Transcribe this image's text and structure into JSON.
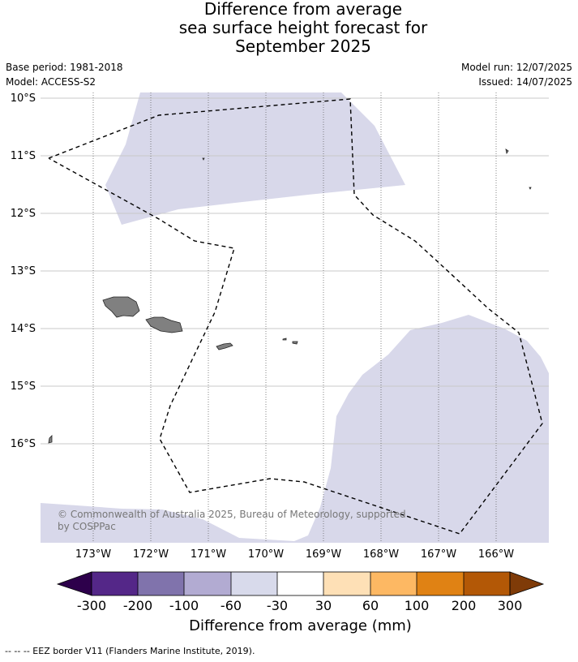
{
  "title_lines": [
    "Difference from average",
    "sea surface height forecast for",
    "September 2025"
  ],
  "meta": {
    "base_period": "Base period: 1981-2018",
    "model": "Model: ACCESS-S2",
    "model_run": "Model run: 12/07/2025",
    "issued": "Issued: 14/07/2025"
  },
  "map": {
    "lat_labels": [
      "10°S",
      "11°S",
      "12°S",
      "13°S",
      "14°S",
      "15°S",
      "16°S"
    ],
    "lon_labels": [
      "173°W",
      "172°W",
      "171°W",
      "170°W",
      "169°W",
      "168°W",
      "167°W",
      "166°W"
    ],
    "copyright_lines": [
      "© Commonwealth of Australia 2025, Bureau of Meteorology, supported",
      "by COSPPac"
    ],
    "colors": {
      "shade_-60_-30": "#d8d8ea",
      "land": "#808080",
      "eez_line": "#000000"
    }
  },
  "colorbar": {
    "ticks": [
      "-300",
      "-200",
      "-100",
      "-60",
      "-30",
      "30",
      "60",
      "100",
      "200",
      "300"
    ],
    "colors": [
      "#2d004b",
      "#542788",
      "#8073ac",
      "#b2abd2",
      "#d8daeb",
      "#ffffff",
      "#fee0b6",
      "#fdb863",
      "#e08214",
      "#b35806",
      "#7f3b08"
    ],
    "label": "Difference from average (mm)"
  },
  "footer": "--  --  -- EEZ border V11 (Flanders Marine Institute, 2019)."
}
